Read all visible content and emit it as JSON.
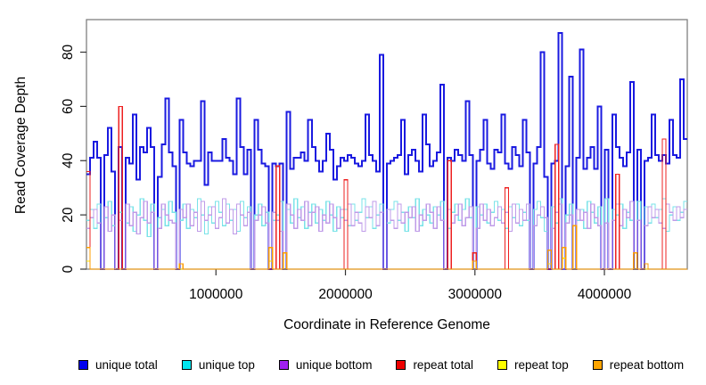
{
  "figure": {
    "y_axis": {
      "label": "Read Coverage Depth",
      "ticks": [
        0,
        20,
        40,
        60,
        80
      ]
    },
    "x_axis": {
      "label": "Coordinate in Reference Genome",
      "ticks": [
        1000000,
        2000000,
        3000000,
        4000000
      ],
      "tick_labels": [
        "1000000",
        "2000000",
        "3000000",
        "4000000"
      ]
    }
  },
  "chart_data": {
    "type": "line",
    "line_style": "step",
    "title": "",
    "xlabel": "Coordinate in Reference Genome",
    "ylabel": "Read Coverage Depth",
    "xlim": [
      0,
      4640000
    ],
    "ylim": [
      0,
      92
    ],
    "grid": false,
    "legend_position": "bottom",
    "n_bins": 168,
    "bin_size_bp": 27619,
    "axis_color": "#808080",
    "tick_color": "#333333",
    "series": [
      {
        "name": "unique total",
        "color": "#0000EE",
        "line_color": "#1A1AE0",
        "width": 2,
        "values": [
          35,
          41,
          47,
          41,
          0,
          42,
          52,
          36,
          0,
          45,
          0,
          41,
          39,
          57,
          33,
          45,
          43,
          52,
          45,
          0,
          34,
          46,
          63,
          43,
          38,
          0,
          55,
          43,
          39,
          38,
          40,
          40,
          62,
          31,
          43,
          40,
          40,
          40,
          48,
          41,
          40,
          35,
          63,
          45,
          35,
          44,
          0,
          55,
          44,
          39,
          38,
          0,
          39,
          38,
          39,
          0,
          58,
          37,
          41,
          41,
          43,
          40,
          55,
          45,
          40,
          36,
          40,
          50,
          44,
          33,
          38,
          41,
          40,
          42,
          41,
          39,
          38,
          40,
          57,
          42,
          40,
          36,
          79,
          0,
          39,
          40,
          41,
          42,
          55,
          35,
          42,
          44,
          40,
          36,
          57,
          46,
          38,
          40,
          43,
          68,
          0,
          41,
          40,
          44,
          42,
          40,
          62,
          42,
          0,
          40,
          44,
          55,
          39,
          37,
          44,
          43,
          57,
          39,
          37,
          45,
          42,
          38,
          55,
          43,
          0,
          39,
          45,
          80,
          34,
          0,
          39,
          40,
          87,
          0,
          38,
          71,
          0,
          41,
          81,
          37,
          41,
          45,
          37,
          60,
          0,
          44,
          0,
          57,
          45,
          41,
          38,
          43,
          69,
          0,
          44,
          0,
          40,
          41,
          57,
          42,
          40,
          42,
          39,
          55,
          42,
          41,
          70,
          48
        ]
      },
      {
        "name": "unique top",
        "color": "#00E5EE",
        "line_color": "#7AE3E8",
        "width": 1.3,
        "values": [
          18,
          22,
          15,
          24,
          0,
          19,
          25,
          16,
          0,
          21,
          0,
          17,
          23,
          14,
          20,
          26,
          18,
          12,
          24,
          0,
          19,
          22,
          16,
          25,
          21,
          0,
          18,
          24,
          15,
          22,
          19,
          26,
          20,
          13,
          23,
          17,
          25,
          21,
          16,
          24,
          18,
          22,
          14,
          25,
          19,
          23,
          0,
          20,
          24,
          16,
          21,
          0,
          18,
          20,
          25,
          0,
          22,
          17,
          26,
          19,
          23,
          15,
          21,
          24,
          17,
          22,
          18,
          25,
          20,
          14,
          23,
          19,
          22,
          16,
          24,
          18,
          21,
          26,
          19,
          23,
          15,
          20,
          24,
          0,
          17,
          22,
          25,
          18,
          21,
          14,
          23,
          19,
          26,
          16,
          22,
          20,
          17,
          23,
          20,
          25,
          0,
          15,
          21,
          24,
          18,
          22,
          26,
          19,
          0,
          23,
          20,
          24,
          17,
          21,
          25,
          18,
          22,
          15,
          23,
          19,
          24,
          16,
          21,
          18,
          0,
          22,
          25,
          19,
          14,
          0,
          23,
          17,
          26,
          0,
          20,
          24,
          0,
          18,
          22,
          15,
          25,
          21,
          17,
          23,
          0,
          26,
          0,
          22,
          20,
          24,
          15,
          21,
          18,
          0,
          25,
          0,
          23,
          17,
          24,
          19,
          22,
          26,
          14,
          20,
          23,
          18,
          21,
          25
        ]
      },
      {
        "name": "unique bottom",
        "color": "#A020F0",
        "line_color": "#BF9BE8",
        "width": 1.3,
        "values": [
          15,
          19,
          22,
          17,
          0,
          23,
          14,
          20,
          0,
          18,
          0,
          24,
          16,
          21,
          13,
          19,
          25,
          17,
          21,
          0,
          15,
          24,
          20,
          18,
          17,
          0,
          22,
          19,
          24,
          16,
          21,
          14,
          25,
          18,
          20,
          23,
          15,
          19,
          26,
          17,
          22,
          13,
          24,
          20,
          16,
          21,
          0,
          18,
          20,
          23,
          17,
          0,
          21,
          18,
          14,
          0,
          24,
          20,
          15,
          22,
          18,
          25,
          16,
          21,
          23,
          14,
          20,
          17,
          24,
          19,
          15,
          22,
          18,
          24,
          16,
          21,
          17,
          14,
          23,
          19,
          25,
          16,
          21,
          0,
          22,
          18,
          15,
          24,
          17,
          21,
          19,
          23,
          14,
          20,
          18,
          24,
          21,
          15,
          23,
          18,
          0,
          22,
          17,
          20,
          24,
          16,
          19,
          23,
          0,
          15,
          24,
          18,
          22,
          16,
          19,
          23,
          17,
          21,
          14,
          24,
          17,
          22,
          18,
          24,
          0,
          16,
          20,
          23,
          19,
          0,
          15,
          21,
          24,
          0,
          17,
          20,
          0,
          22,
          18,
          21,
          15,
          24,
          19,
          16,
          0,
          17,
          0,
          18,
          24,
          16,
          22,
          19,
          25,
          0,
          18,
          0,
          16,
          23,
          19,
          22,
          17,
          15,
          24,
          21,
          18,
          23,
          19,
          22
        ]
      },
      {
        "name": "repeat total",
        "color": "#EE0000",
        "line_color": "#EE2020",
        "width": 1.3,
        "sparse": {
          "0": 36,
          "9": 60,
          "53": 38,
          "72": 33,
          "101": 40,
          "108": 6,
          "117": 30,
          "131": 46,
          "133": 8,
          "148": 35,
          "161": 48
        }
      },
      {
        "name": "repeat top",
        "color": "#FFFF00",
        "line_color": "#FFE400",
        "width": 1.3,
        "sparse": {
          "0": 3,
          "51": 3,
          "129": 2,
          "133": 4
        }
      },
      {
        "name": "repeat bottom",
        "color": "#FFA500",
        "line_color": "#FF9D00",
        "width": 1.3,
        "sparse": {
          "0": 8,
          "26": 2,
          "51": 8,
          "55": 6,
          "108": 3,
          "129": 7,
          "133": 8,
          "136": 16,
          "153": 6,
          "156": 2
        }
      }
    ]
  }
}
